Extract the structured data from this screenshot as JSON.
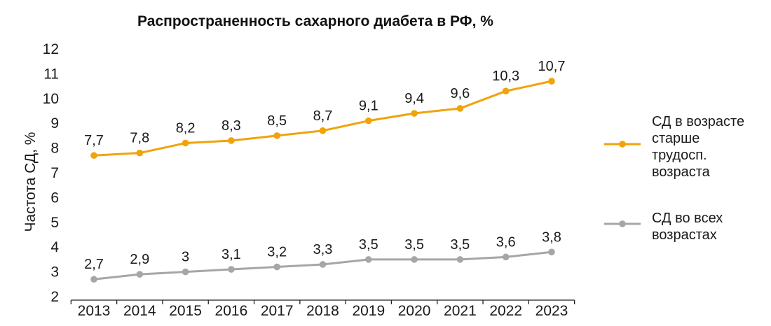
{
  "chart_data": {
    "type": "line",
    "title": "Распространенность сахарного диабета в РФ, %",
    "ylabel": "Частота СД, %",
    "xlabel": "",
    "categories": [
      "2013",
      "2014",
      "2015",
      "2016",
      "2017",
      "2018",
      "2019",
      "2020",
      "2021",
      "2022",
      "2023"
    ],
    "yticks": [
      "2",
      "3",
      "4",
      "5",
      "6",
      "7",
      "8",
      "9",
      "10",
      "11",
      "12"
    ],
    "ylim": [
      2,
      12
    ],
    "grid": false,
    "legend_position": "right",
    "series": [
      {
        "name": "СД в возрасте старше трудосп. возраста",
        "legend_lines": [
          "СД в возрасте",
          "старше",
          "трудосп.",
          "возраста"
        ],
        "color": "#f0a30a",
        "values": [
          7.7,
          7.8,
          8.2,
          8.3,
          8.5,
          8.7,
          9.1,
          9.4,
          9.6,
          10.3,
          10.7
        ],
        "labels": [
          "7,7",
          "7,8",
          "8,2",
          "8,3",
          "8,5",
          "8,7",
          "9,1",
          "9,4",
          "9,6",
          "10,3",
          "10,7"
        ]
      },
      {
        "name": "СД во всех возрастах",
        "legend_lines": [
          "СД во всех",
          "возрастах"
        ],
        "color": "#a6a6a6",
        "values": [
          2.7,
          2.9,
          3.0,
          3.1,
          3.2,
          3.3,
          3.5,
          3.5,
          3.5,
          3.6,
          3.8
        ],
        "labels": [
          "2,7",
          "2,9",
          "3",
          "3,1",
          "3,2",
          "3,3",
          "3,5",
          "3,5",
          "3,5",
          "3,6",
          "3,8"
        ]
      }
    ]
  }
}
